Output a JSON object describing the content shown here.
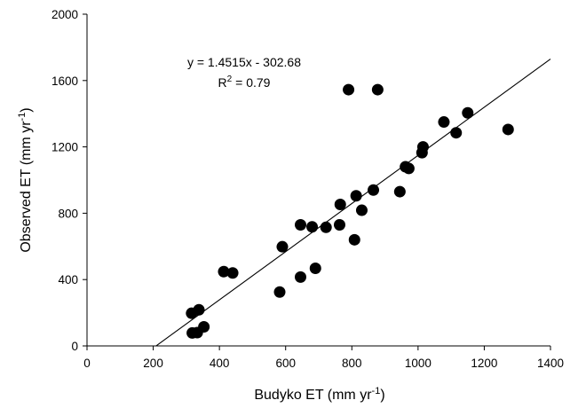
{
  "chart_data": {
    "type": "scatter",
    "xlabel": "Budyko ET (mm yr",
    "xlabel_sup": "-1",
    "xlabel_end": ")",
    "ylabel": "Observed ET (mm yr",
    "ylabel_sup": "-1",
    "ylabel_end": ")",
    "xlim": [
      0,
      1400
    ],
    "ylim": [
      0,
      2000
    ],
    "xticks": [
      0,
      200,
      400,
      600,
      800,
      1000,
      1200,
      1400
    ],
    "yticks": [
      0,
      400,
      800,
      1200,
      1600,
      2000
    ],
    "grid": false,
    "marker_color": "#000000",
    "points": [
      [
        316,
        197
      ],
      [
        318,
        78
      ],
      [
        333,
        80
      ],
      [
        338,
        218
      ],
      [
        353,
        115
      ],
      [
        413,
        448
      ],
      [
        440,
        440
      ],
      [
        582,
        325
      ],
      [
        590,
        598
      ],
      [
        645,
        415
      ],
      [
        645,
        730
      ],
      [
        680,
        718
      ],
      [
        690,
        468
      ],
      [
        722,
        715
      ],
      [
        763,
        730
      ],
      [
        765,
        853
      ],
      [
        790,
        1545
      ],
      [
        808,
        640
      ],
      [
        813,
        905
      ],
      [
        830,
        818
      ],
      [
        865,
        940
      ],
      [
        878,
        1545
      ],
      [
        945,
        930
      ],
      [
        962,
        1080
      ],
      [
        972,
        1070
      ],
      [
        1012,
        1165
      ],
      [
        1015,
        1200
      ],
      [
        1078,
        1350
      ],
      [
        1115,
        1285
      ],
      [
        1150,
        1405
      ],
      [
        1272,
        1305
      ]
    ],
    "fit_line": {
      "slope": 1.4515,
      "intercept": -302.68,
      "x_range": [
        208.5,
        1400
      ]
    },
    "annotation": {
      "equation": "y = 1.4515x - 302.68",
      "r2_prefix": "R",
      "r2_exp": "2",
      "r2_suffix": " = 0.79"
    }
  }
}
